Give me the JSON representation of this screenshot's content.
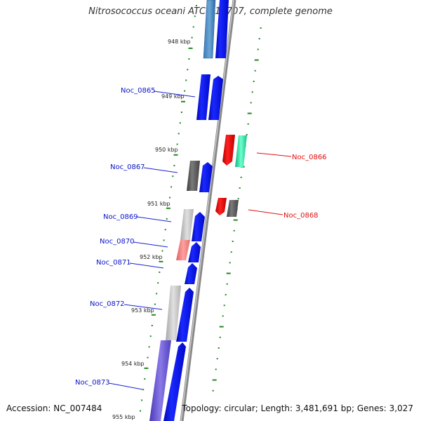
{
  "title": "Nitrosococcus oceani ATCC 19707, complete genome",
  "footer": {
    "accession": "Accession: NC_007484",
    "summary": "Topology: circular; Length: 3,481,691 bp; Genes: 3,027"
  },
  "scale_labels": [
    "948 kbp",
    "949 kbp",
    "950 kbp",
    "951 kbp",
    "952 kbp",
    "953 kbp",
    "954 kbp",
    "955 kbp"
  ],
  "gene_labels": {
    "noc_0865": "Noc_0865",
    "noc_0866": "Noc_0866",
    "noc_0867": "Noc_0867",
    "noc_0868": "Noc_0868",
    "noc_0869": "Noc_0869",
    "noc_0870": "Noc_0870",
    "noc_0871": "Noc_0871",
    "noc_0872": "Noc_0872",
    "noc_0873": "Noc_0873"
  },
  "colors": {
    "cds_blue": "#0a12e8",
    "cds_red": "#e81010",
    "cds_green": "#20e0a0",
    "cds_gray": "#555555",
    "cds_purple": "#6050d0",
    "ruler_green": "#228822"
  }
}
